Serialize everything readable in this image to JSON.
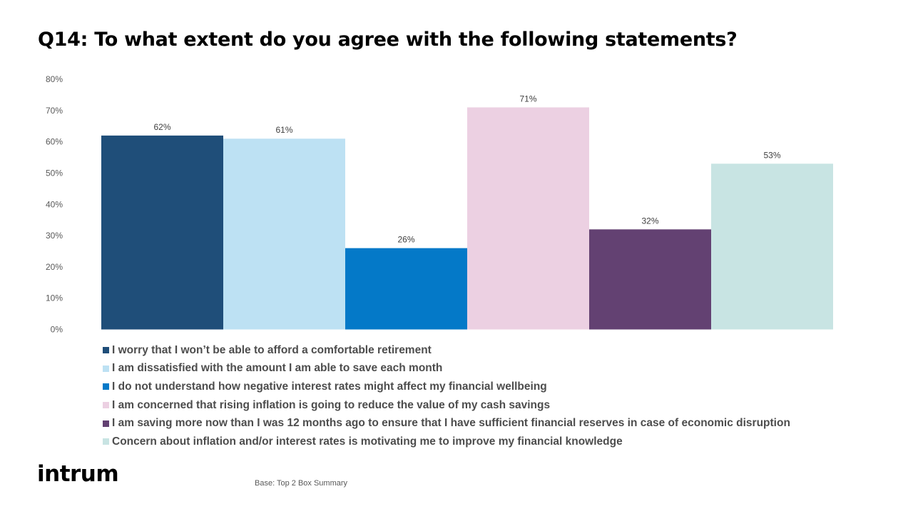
{
  "title": "Q14: To what extent do you agree with the following statements?",
  "chart_data": {
    "type": "bar",
    "categories": [
      "I worry that I won’t be able to afford a comfortable retirement",
      "I am dissatisfied with the amount I am able to save each month",
      "I do not understand how negative interest rates might affect my financial wellbeing",
      "I am concerned that rising inflation is going to reduce the value of my cash savings",
      "I am saving more now than I was 12 months ago to ensure that I have sufficient financial reserves in case of economic disruption",
      "Concern about inflation and/or interest rates is motivating me to improve my financial knowledge"
    ],
    "values": [
      62,
      61,
      26,
      71,
      32,
      53
    ],
    "data_labels": [
      "62%",
      "61%",
      "26%",
      "71%",
      "32%",
      "53%"
    ],
    "colors": [
      "#1f4e79",
      "#bde1f3",
      "#0479c8",
      "#ecd0e2",
      "#634172",
      "#c8e4e3"
    ],
    "ylim": [
      0,
      80
    ],
    "yticks": [
      0,
      10,
      20,
      30,
      40,
      50,
      60,
      70,
      80
    ],
    "ytick_labels": [
      "0%",
      "10%",
      "20%",
      "30%",
      "40%",
      "50%",
      "60%",
      "70%",
      "80%"
    ],
    "grid": false,
    "legend_position": "bottom"
  },
  "footer": {
    "logo": "intrum",
    "base_note": "Base: Top 2 Box Summary"
  }
}
